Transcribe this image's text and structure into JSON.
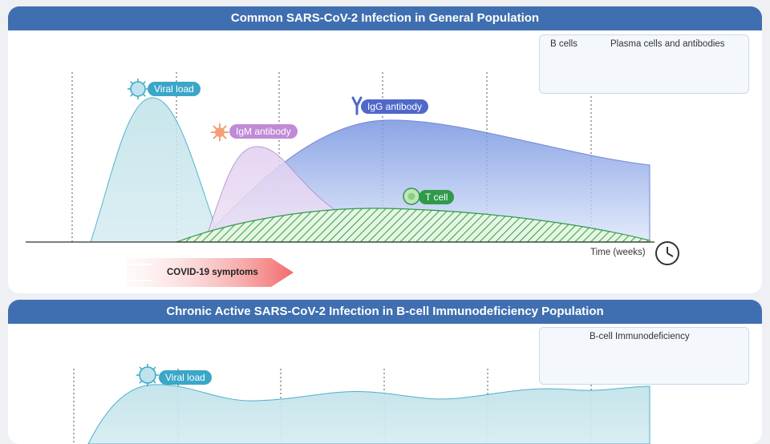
{
  "panel_general": {
    "title": "Common SARS-CoV-2 Infection in General Population",
    "labels": {
      "viral_load": "Viral load",
      "igm": "IgM antibody",
      "igg": "IgG antibody",
      "tcell": "T cell"
    },
    "legend": {
      "b_cells": "B cells",
      "plasma": "Plasma cells and antibodies"
    },
    "axis_label": "Time (weeks)",
    "symptoms": "COVID-19 symptoms"
  },
  "panel_chronic": {
    "title": "Chronic Active SARS-CoV-2 Infection in B-cell Immunodeficiency Population",
    "labels": {
      "viral_load": "Viral load"
    },
    "legend": {
      "title": "B-cell Immunodeficiency"
    }
  },
  "icons": [
    "virus-icon",
    "igm-icon",
    "igg-icon",
    "t-cell-icon",
    "b-cell-icon",
    "plasma-cell-icon",
    "antibody-icon",
    "clock-icon",
    "arrow-icon",
    "cross-icon"
  ],
  "colors": {
    "header": "#3f6fb0",
    "viral": "#3aa7c9",
    "igm": "#c08ad6",
    "igg": "#4f68c9",
    "tcell": "#2f9a4a",
    "symptoms": "#f06a6a"
  }
}
